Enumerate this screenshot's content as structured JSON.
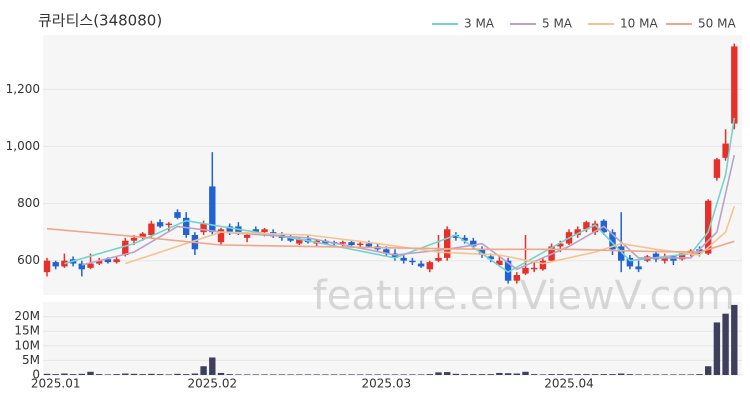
{
  "chart_data": {
    "type": "candlestick",
    "title": "큐라티스(348080)",
    "watermark": "feature.enViewV.com",
    "categories": [
      null,
      "2025.01",
      null,
      null,
      null,
      null,
      null,
      null,
      null,
      null,
      null,
      null,
      null,
      null,
      null,
      null,
      null,
      null,
      null,
      "2025.02",
      null,
      null,
      null,
      null,
      null,
      null,
      null,
      null,
      null,
      null,
      null,
      null,
      null,
      null,
      null,
      null,
      null,
      null,
      null,
      "2025.03",
      null,
      null,
      null,
      null,
      null,
      null,
      null,
      null,
      null,
      null,
      null,
      null,
      null,
      null,
      null,
      null,
      null,
      null,
      null,
      null,
      "2025.04",
      null,
      null,
      null,
      null,
      null,
      null,
      null,
      null,
      null,
      null,
      null,
      null,
      null,
      null,
      null,
      null,
      null,
      null,
      null
    ],
    "open": [
      560,
      595,
      580,
      605,
      590,
      575,
      590,
      605,
      595,
      620,
      670,
      680,
      690,
      735,
      725,
      770,
      750,
      690,
      700,
      860,
      665,
      720,
      720,
      680,
      710,
      700,
      700,
      690,
      680,
      660,
      675,
      660,
      670,
      665,
      660,
      665,
      655,
      660,
      650,
      640,
      625,
      610,
      600,
      590,
      570,
      600,
      610,
      690,
      680,
      670,
      640,
      615,
      585,
      600,
      530,
      555,
      570,
      570,
      600,
      650,
      660,
      690,
      710,
      700,
      740,
      700,
      650,
      610,
      580,
      600,
      625,
      600,
      615,
      605,
      625,
      640,
      625,
      890,
      960,
      1080
    ],
    "high": [
      610,
      600,
      625,
      615,
      600,
      625,
      610,
      612,
      615,
      680,
      690,
      700,
      740,
      745,
      735,
      780,
      770,
      700,
      740,
      980,
      715,
      730,
      735,
      700,
      720,
      715,
      710,
      700,
      690,
      680,
      690,
      675,
      675,
      670,
      670,
      672,
      668,
      670,
      660,
      650,
      640,
      620,
      610,
      600,
      600,
      690,
      720,
      700,
      690,
      680,
      650,
      625,
      615,
      610,
      560,
      690,
      600,
      610,
      660,
      670,
      710,
      720,
      740,
      740,
      745,
      710,
      770,
      620,
      600,
      620,
      635,
      625,
      620,
      630,
      640,
      650,
      815,
      960,
      1060,
      1360
    ],
    "low": [
      545,
      570,
      575,
      580,
      545,
      570,
      585,
      590,
      590,
      615,
      655,
      670,
      680,
      715,
      700,
      745,
      680,
      620,
      690,
      690,
      655,
      690,
      690,
      665,
      690,
      685,
      680,
      670,
      665,
      655,
      660,
      650,
      655,
      650,
      650,
      650,
      645,
      645,
      635,
      615,
      600,
      590,
      585,
      575,
      560,
      595,
      600,
      670,
      660,
      640,
      610,
      595,
      580,
      520,
      520,
      550,
      560,
      565,
      595,
      630,
      655,
      680,
      700,
      690,
      690,
      620,
      560,
      570,
      560,
      595,
      595,
      590,
      585,
      600,
      615,
      615,
      620,
      880,
      950,
      1060
    ],
    "close": [
      600,
      580,
      600,
      590,
      570,
      590,
      600,
      595,
      605,
      670,
      680,
      695,
      730,
      720,
      730,
      750,
      690,
      640,
      730,
      700,
      710,
      700,
      695,
      690,
      700,
      710,
      685,
      680,
      670,
      675,
      665,
      670,
      660,
      660,
      665,
      655,
      660,
      650,
      640,
      625,
      610,
      600,
      595,
      580,
      595,
      610,
      710,
      680,
      670,
      650,
      620,
      605,
      600,
      530,
      550,
      575,
      575,
      600,
      650,
      660,
      700,
      710,
      735,
      730,
      700,
      640,
      600,
      580,
      570,
      615,
      605,
      615,
      600,
      625,
      635,
      625,
      810,
      955,
      1010,
      1350
    ],
    "volume": [
      400000,
      300000,
      500000,
      300000,
      400000,
      1100000,
      300000,
      200000,
      300000,
      500000,
      400000,
      300000,
      400000,
      300000,
      200000,
      400000,
      300000,
      500000,
      3000000,
      6000000,
      700000,
      300000,
      200000,
      200000,
      200000,
      200000,
      200000,
      200000,
      200000,
      200000,
      200000,
      200000,
      200000,
      200000,
      200000,
      200000,
      200000,
      200000,
      200000,
      200000,
      200000,
      200000,
      200000,
      200000,
      300000,
      900000,
      1000000,
      400000,
      300000,
      300000,
      300000,
      300000,
      700000,
      600000,
      500000,
      1100000,
      300000,
      200000,
      300000,
      300000,
      300000,
      300000,
      300000,
      300000,
      300000,
      300000,
      500000,
      300000,
      200000,
      200000,
      200000,
      200000,
      200000,
      200000,
      200000,
      300000,
      3000000,
      18000000,
      21000000,
      24000000
    ],
    "up_color": "#e8302a",
    "down_color": "#1f63d6",
    "volume_color": "#3d3f5c",
    "series": [
      {
        "name": "3 MA",
        "color": "#74d3cc",
        "x": [
          2,
          10,
          16,
          20,
          30,
          40,
          47,
          53,
          60,
          63,
          67,
          74,
          76,
          78,
          79
        ],
        "values": [
          590,
          660,
          740,
          720,
          670,
          610,
          690,
          560,
          680,
          725,
          600,
          625,
          700,
          900,
          1100
        ]
      },
      {
        "name": "5 MA",
        "color": "#b9a3c8",
        "x": [
          4,
          10,
          15,
          20,
          30,
          40,
          46,
          50,
          54,
          60,
          64,
          68,
          74,
          77,
          79
        ],
        "values": [
          585,
          630,
          720,
          700,
          680,
          620,
          640,
          660,
          570,
          650,
          720,
          610,
          610,
          700,
          970
        ]
      },
      {
        "name": "10 MA",
        "color": "#f5c48e",
        "x": [
          9,
          20,
          30,
          38,
          45,
          52,
          57,
          63,
          66,
          70,
          75,
          78,
          79
        ],
        "values": [
          590,
          700,
          690,
          660,
          630,
          620,
          590,
          630,
          660,
          640,
          620,
          700,
          790
        ]
      },
      {
        "name": "50 MA",
        "color": "#f0a58e",
        "x": [
          0,
          10,
          20,
          30,
          40,
          50,
          60,
          70,
          75,
          79
        ],
        "values": [
          712,
          685,
          655,
          650,
          645,
          640,
          640,
          632,
          630,
          668
        ]
      }
    ],
    "ylim": [
      480,
      1390
    ],
    "yticks": [
      600,
      800,
      {
        "value": 1000,
        "label": "1,000"
      },
      {
        "value": 1200,
        "label": "1,200"
      }
    ],
    "volume_ylim": [
      0,
      25000000
    ],
    "volume_yticks": [
      0,
      {
        "value": 5000000,
        "label": "5M"
      },
      {
        "value": 10000000,
        "label": "10M"
      },
      {
        "value": 15000000,
        "label": "15M"
      },
      {
        "value": 20000000,
        "label": "20M"
      }
    ],
    "grid": true
  }
}
